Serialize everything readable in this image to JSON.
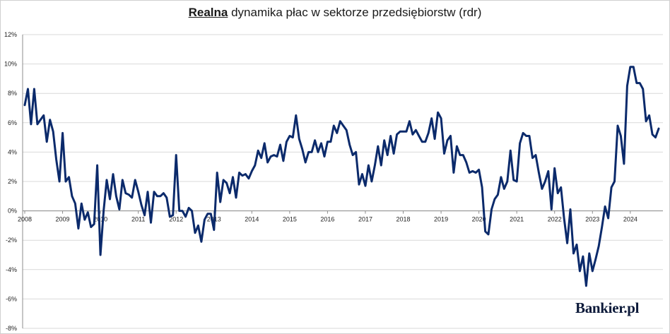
{
  "chart_data": {
    "type": "line",
    "title_underlined": "Realna",
    "title_rest": " dynamika płac w sektorze przedsiębiorstw (rdr)",
    "ylim": [
      -8,
      12
    ],
    "y_ticks": [
      12,
      10,
      8,
      6,
      4,
      2,
      0,
      -2,
      -4,
      -6,
      -8
    ],
    "y_tick_labels": [
      "12%",
      "10%",
      "8%",
      "6%",
      "4%",
      "2%",
      "0%",
      "-2%",
      "-4%",
      "-6%",
      "-8%"
    ],
    "x_tick_labels": [
      "2008",
      "2009",
      "2010",
      "2011",
      "2012",
      "2013",
      "2014",
      "2015",
      "2016",
      "2017",
      "2018",
      "2019",
      "2020",
      "2021",
      "2022",
      "2023",
      "2024"
    ],
    "grid": true,
    "line_color": "#0b2a6b",
    "series": [
      {
        "values": [
          7.2,
          8.3,
          5.9,
          8.3,
          5.9,
          6.2,
          6.5,
          4.7,
          6.2,
          5.4,
          3.5,
          2.0,
          5.3,
          2.0,
          2.3,
          1.0,
          0.5,
          -1.2,
          0.5,
          -0.6,
          -0.1,
          -1.1,
          -0.9,
          3.1,
          -3.0,
          0.0,
          2.1,
          0.8,
          2.5,
          1.0,
          0.1,
          2.1,
          1.2,
          1.1,
          0.9,
          2.1,
          1.3,
          0.4,
          -0.3,
          1.3,
          -0.8,
          1.3,
          1.0,
          1.0,
          1.2,
          0.9,
          -0.4,
          -0.3,
          3.8,
          0.0,
          0.0,
          -0.4,
          0.2,
          0.0,
          -1.5,
          -1.0,
          -2.1,
          -0.6,
          -0.2,
          -0.2,
          -1.3,
          2.6,
          0.6,
          2.1,
          1.9,
          1.2,
          2.3,
          0.9,
          2.6,
          2.4,
          2.5,
          2.2,
          2.7,
          3.1,
          4.1,
          3.6,
          4.6,
          3.3,
          3.7,
          3.8,
          3.7,
          4.5,
          3.4,
          4.7,
          5.1,
          5.0,
          6.5,
          4.9,
          4.2,
          3.3,
          4.0,
          4.0,
          4.8,
          4.0,
          4.6,
          3.7,
          4.7,
          4.7,
          5.8,
          5.3,
          6.1,
          5.8,
          5.5,
          4.5,
          3.8,
          4.0,
          1.8,
          2.5,
          1.7,
          3.1,
          2.0,
          3.1,
          4.4,
          3.1,
          4.8,
          3.8,
          5.1,
          3.9,
          5.2,
          5.4,
          5.4,
          5.4,
          6.1,
          5.2,
          5.5,
          5.1,
          4.7,
          4.7,
          5.3,
          6.3,
          4.9,
          6.7,
          6.3,
          3.9,
          4.8,
          5.1,
          2.6,
          4.4,
          3.8,
          3.8,
          3.3,
          2.6,
          2.7,
          2.6,
          2.8,
          1.6,
          -1.4,
          -1.6,
          0.1,
          0.8,
          1.1,
          2.3,
          1.5,
          2.0,
          4.1,
          2.1,
          2.0,
          4.6,
          5.3,
          5.1,
          5.1,
          3.6,
          3.8,
          2.6,
          1.5,
          2.0,
          2.7,
          0.1,
          2.9,
          1.2,
          1.6,
          -0.5,
          -2.2,
          0.1,
          -2.9,
          -2.3,
          -4.1,
          -3.1,
          -5.1,
          -2.9,
          -4.1,
          -3.3,
          -2.4,
          -1.1,
          0.3,
          -0.5,
          1.6,
          2.0,
          5.8,
          5.1,
          3.2,
          8.5,
          9.8,
          9.8,
          8.7,
          8.7,
          8.3,
          6.1,
          6.5,
          5.2,
          5.0,
          5.6
        ]
      }
    ]
  },
  "watermark": {
    "text": "Bankier.pl"
  }
}
